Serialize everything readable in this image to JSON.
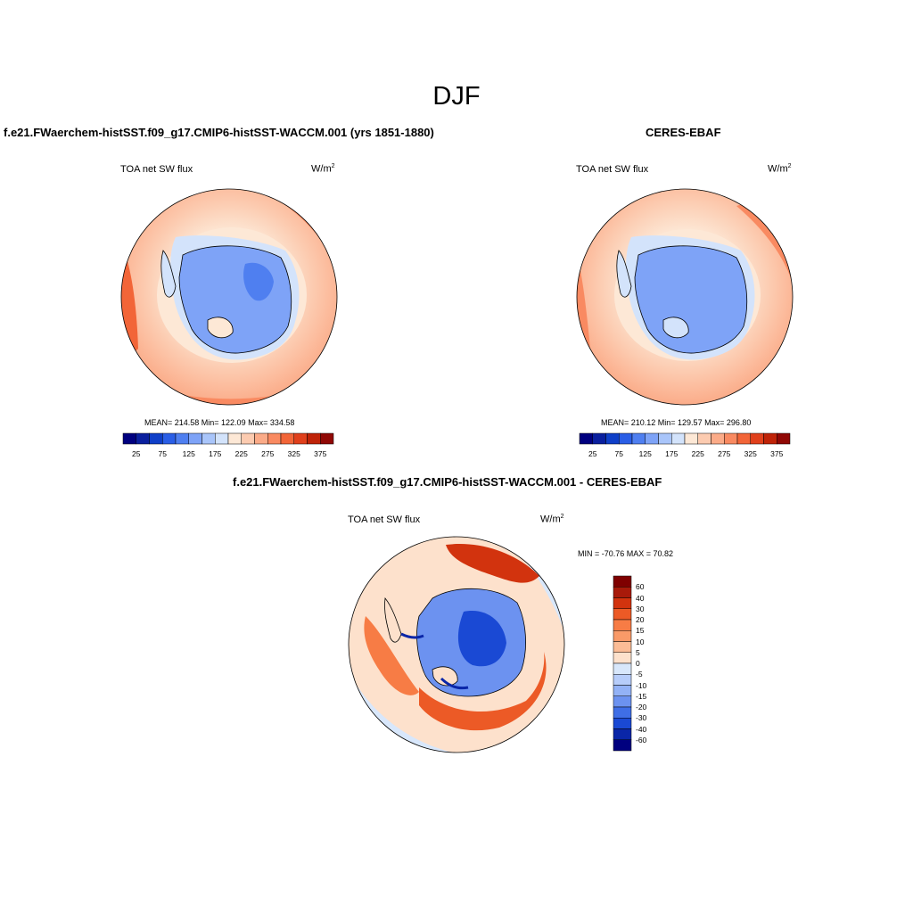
{
  "title": "DJF",
  "panels": [
    {
      "title": "f.e21.FWaerchem-histSST.f09_g17.CMIP6-histSST-WACCM.001 (yrs 1851-1880)",
      "variable": "TOA net SW flux",
      "units": "W/m",
      "units_sup": "2",
      "stats": "MEAN= 214.58  Min= 122.09  Max= 334.58"
    },
    {
      "title": "CERES-EBAF",
      "variable": "TOA net SW flux",
      "units": "W/m",
      "units_sup": "2",
      "stats": "MEAN= 210.12  Min= 129.57  Max= 296.80"
    },
    {
      "title": "f.e21.FWaerchem-histSST.f09_g17.CMIP6-histSST-WACCM.001 - CERES-EBAF",
      "variable": "TOA net SW flux",
      "units": "W/m",
      "units_sup": "2",
      "stats": "MIN = -70.76 MAX =  70.82"
    }
  ],
  "colorbar_abs": {
    "ticks": [
      "25",
      "75",
      "125",
      "175",
      "225",
      "275",
      "325",
      "375"
    ],
    "colors": [
      "#00007f",
      "#0a1f9e",
      "#0f3fc8",
      "#2a5ee6",
      "#4f7ff0",
      "#7ea3f7",
      "#a9c5fa",
      "#d3e3fb",
      "#fde8d6",
      "#fccbb0",
      "#fbab88",
      "#f98a61",
      "#f26538",
      "#e0401c",
      "#bf2308",
      "#900805"
    ]
  },
  "colorbar_diff": {
    "ticks": [
      "60",
      "40",
      "30",
      "20",
      "15",
      "10",
      "5",
      "0",
      "-5",
      "-10",
      "-15",
      "-20",
      "-30",
      "-40",
      "-60"
    ],
    "colors": [
      "#7f0000",
      "#a81a0a",
      "#d2330e",
      "#ec5a26",
      "#f77c45",
      "#f99a68",
      "#fbbc96",
      "#fde1cc",
      "#d8e7fb",
      "#b7cdfa",
      "#93b2f6",
      "#6c92f0",
      "#3f6ee6",
      "#1a49d4",
      "#0a26a8",
      "#00007f"
    ]
  }
}
